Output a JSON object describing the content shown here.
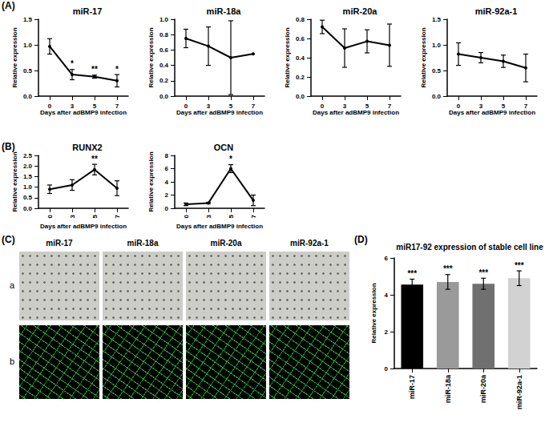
{
  "panel_labels": [
    "(A)",
    "(B)",
    "(C)",
    "(D)"
  ],
  "images": {
    "columns": [
      "miR-17",
      "miR-18a",
      "miR-20a",
      "miR-92a-1"
    ],
    "rows": [
      "a",
      "b"
    ]
  },
  "chart_data": [
    {
      "type": "line",
      "title": "miR-17",
      "x_label": "Days after adBMP9 infection",
      "y_label": "Relative expression",
      "categories": [
        "0",
        "3",
        "5",
        "7"
      ],
      "values": [
        0.97,
        0.42,
        0.38,
        0.3
      ],
      "errors": [
        0.15,
        0.1,
        0.03,
        0.12
      ],
      "significance": [
        null,
        "*",
        "**",
        "*"
      ],
      "color": "#000000",
      "marker": "circle",
      "ylim": [
        0,
        1.5
      ],
      "yticks": [
        {
          "value": 0,
          "label": "0.0"
        },
        0.5,
        {
          "value": 1,
          "label": "1.0"
        },
        1.5
      ],
      "grid": false
    },
    {
      "type": "line",
      "title": "miR-18a",
      "x_label": "Days after adBMP9 infection",
      "y_label": "Relative expression",
      "categories": [
        "0",
        "3",
        "5",
        "7"
      ],
      "values": [
        0.75,
        0.65,
        0.5,
        0.55
      ],
      "errors": [
        0.12,
        0.25,
        0.48,
        null
      ],
      "color": "#000000",
      "marker": "circle",
      "ylim": [
        0,
        1
      ],
      "yticks": [
        {
          "value": 0,
          "label": "0.0"
        },
        0.2,
        0.4,
        0.6,
        0.8,
        {
          "value": 1,
          "label": "1.0"
        }
      ],
      "grid": false
    },
    {
      "type": "line",
      "title": "miR-20a",
      "x_label": "Days after adBMP9 infection",
      "y_label": "Relative expression",
      "categories": [
        "0",
        "3",
        "5",
        "7"
      ],
      "values": [
        0.72,
        0.5,
        0.57,
        0.53
      ],
      "errors": [
        0.07,
        0.2,
        0.12,
        0.22
      ],
      "color": "#000000",
      "marker": "circle",
      "ylim": [
        0,
        0.8
      ],
      "yticks": [
        {
          "value": 0,
          "label": "0.0"
        },
        0.2,
        0.4,
        0.6,
        0.8
      ],
      "grid": false
    },
    {
      "type": "line",
      "title": "miR-92a-1",
      "x_label": "Days after adBMP9 infection",
      "y_label": "Relative expression",
      "categories": [
        "0",
        "3",
        "5",
        "7"
      ],
      "values": [
        0.82,
        0.75,
        0.68,
        0.55
      ],
      "errors": [
        0.22,
        0.1,
        0.12,
        0.27
      ],
      "color": "#000000",
      "marker": "circle",
      "ylim": [
        0,
        1.5
      ],
      "yticks": [
        {
          "value": 0,
          "label": "0.0"
        },
        0.5,
        {
          "value": 1,
          "label": "1.0"
        },
        1.5
      ],
      "grid": false
    },
    {
      "type": "line",
      "title": "RUNX2",
      "x_label": "Days after adBMP9 infection",
      "y_label": "Relative expression",
      "categories": [
        "0",
        "3",
        "5",
        "7"
      ],
      "values": [
        0.9,
        1.1,
        1.83,
        0.95
      ],
      "errors": [
        0.2,
        0.25,
        0.25,
        0.35
      ],
      "significance": [
        null,
        null,
        "**",
        null
      ],
      "color": "#000000",
      "marker": "circle",
      "ylim": [
        0,
        2.5
      ],
      "yticks": [
        {
          "value": 0,
          "label": "0.0"
        },
        0.5,
        {
          "value": 1,
          "label": "1.0"
        },
        1.5,
        {
          "value": 2,
          "label": "2.0"
        },
        2.5
      ],
      "grid": false
    },
    {
      "type": "line",
      "title": "OCN",
      "x_label": "Days after adBMP9 infection",
      "y_label": "Relative expression",
      "categories": [
        "0",
        "3",
        "5",
        "7"
      ],
      "values": [
        0.6,
        0.8,
        6.0,
        1.2
      ],
      "errors": [
        0.2,
        0.1,
        0.6,
        0.8
      ],
      "significance": [
        null,
        null,
        "*",
        null
      ],
      "color": "#000000",
      "marker": "circle",
      "ylim": [
        0,
        8
      ],
      "yticks": [
        0,
        2,
        4,
        6,
        8
      ],
      "grid": false
    },
    {
      "type": "bar",
      "title": "miR17-92 expression of stable cell line",
      "y_label": "Relative expression",
      "categories": [
        "miR-17",
        "miR-18a",
        "miR-20a",
        "miR-92a-1"
      ],
      "values": [
        4.55,
        4.7,
        4.6,
        4.9
      ],
      "errors": [
        0.3,
        0.4,
        0.3,
        0.4
      ],
      "significance": [
        "***",
        "***",
        "***",
        "***"
      ],
      "colors": [
        "#000000",
        "#9a9a9a",
        "#707070",
        "#d2d2d2"
      ],
      "ylim": [
        0,
        6
      ],
      "yticks": [
        0,
        2,
        4,
        6
      ],
      "grid": false
    }
  ]
}
